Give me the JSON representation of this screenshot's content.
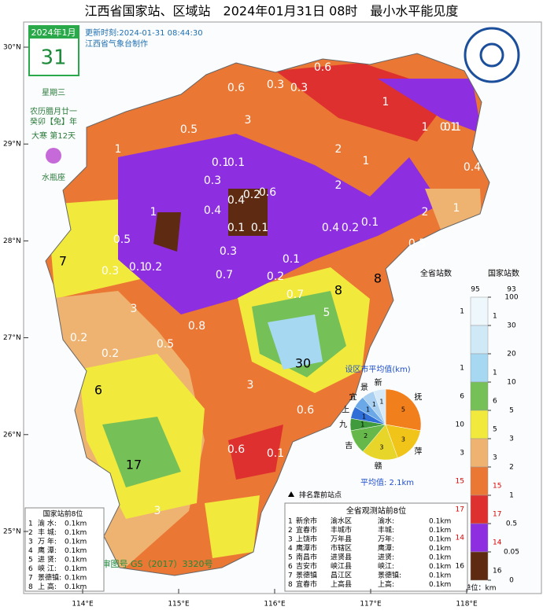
{
  "header": {
    "title": "江西省国家站、区域站　2024年01月31日 08时　最小水平能见度",
    "update": "更新时刻:2024-01-31 08:44:30",
    "maker": "江西省气象台制作"
  },
  "calendar": {
    "month": "2024年1月",
    "day": "31",
    "weekday": "星期三",
    "lunar": "农历腊月廿一",
    "year": "癸卯【兔】年",
    "term": "大寒 第12天",
    "zodiac": "水瓶座"
  },
  "axes": {
    "lat_ticks": [
      {
        "value": 30,
        "label": "30°N"
      },
      {
        "value": 29,
        "label": "29°N"
      },
      {
        "value": 28,
        "label": "28°N"
      },
      {
        "value": 27,
        "label": "27°N"
      },
      {
        "value": 26,
        "label": "26°N"
      },
      {
        "value": 25,
        "label": "25°N"
      }
    ],
    "lon_ticks": [
      {
        "value": 114,
        "label": "114°E"
      },
      {
        "value": 115,
        "label": "115°E"
      },
      {
        "value": 116,
        "label": "116°E"
      },
      {
        "value": 117,
        "label": "117°E"
      },
      {
        "value": 118,
        "label": "118°E"
      }
    ]
  },
  "map": {
    "values": [
      0.6,
      0.3,
      0.3,
      0.6,
      0.5,
      0.1,
      0.1,
      0.4,
      1,
      1,
      0.1,
      0.3,
      0.4,
      0.2,
      0.6,
      0.1,
      0.4,
      0.2,
      0.1,
      0.3,
      0.1,
      0.5,
      0.3,
      0.1,
      0.7,
      0.2,
      0.2,
      0.7,
      0.2,
      0.8,
      8,
      8,
      7,
      30,
      6,
      17,
      0.6,
      0.1,
      0.6,
      3,
      5,
      2,
      3,
      1,
      2,
      0.5,
      0.5,
      1,
      2,
      3,
      1,
      0.2,
      0.4,
      0.1,
      1,
      0.1,
      3
    ]
  },
  "legend": {
    "all_label": "全省站数",
    "nat_label": "国家站数",
    "all_total": 95,
    "nat_total": 93,
    "unit": "单位：km",
    "levels": [
      100,
      30,
      20,
      10,
      5,
      3,
      2,
      1,
      0.5,
      0.05,
      0
    ],
    "colors": [
      "#eef7fc",
      "#cfe9f7",
      "#a6d8f2",
      "#76c058",
      "#f1e93c",
      "#efb371",
      "#ea7734",
      "#de302e",
      "#8d2fe0",
      "#5e2a12"
    ],
    "all_counts": [
      1,
      null,
      1,
      6,
      10,
      3,
      15,
      17,
      14,
      16
    ],
    "nat_counts": [
      1,
      null,
      1,
      6,
      5,
      3,
      15,
      17,
      14,
      16
    ]
  },
  "pie": {
    "title": "设区市平均值(km)",
    "avg": "平均值: 2.1km",
    "names": [
      "抚",
      "萍",
      "赣",
      "吉",
      "九",
      "上",
      "宜",
      "景",
      "新"
    ],
    "values": [
      5,
      3,
      3,
      2,
      1,
      1,
      1,
      1,
      1
    ],
    "colors": [
      "#f07f1c",
      "#f0c419",
      "#e8d52a",
      "#66b84a",
      "#3f9b3c",
      "#2f6fd6",
      "#6aa8e8",
      "#a9d0f0",
      "#d6e9f8"
    ]
  },
  "ranking": {
    "marker_note": "排名靠前站点",
    "nat_title": "国家站前8位",
    "all_title": "全省观测站前8位",
    "nat_rows": [
      [
        "1",
        "渝 水:",
        "0.1km"
      ],
      [
        "2",
        "丰 城:",
        "0.1km"
      ],
      [
        "3",
        "万 年:",
        "0.1km"
      ],
      [
        "4",
        "鹰 潭:",
        "0.1km"
      ],
      [
        "5",
        "进 贤:",
        "0.1km"
      ],
      [
        "6",
        "峡 江:",
        "0.1km"
      ],
      [
        "7",
        "景德镇:",
        "0.1km"
      ],
      [
        "8",
        "上 高:",
        "0.1km"
      ]
    ],
    "all_rows": [
      [
        "1",
        "新余市",
        "渝水区",
        "渝水:",
        "0.1km"
      ],
      [
        "2",
        "宜春市",
        "丰城市",
        "丰城:",
        "0.1km"
      ],
      [
        "3",
        "上饶市",
        "万年县",
        "万年:",
        "0.1km"
      ],
      [
        "4",
        "鹰潭市",
        "市辖区",
        "鹰潭:",
        "0.1km"
      ],
      [
        "5",
        "南昌市",
        "进贤县",
        "进贤:",
        "0.1km"
      ],
      [
        "6",
        "吉安市",
        "峡江县",
        "峡江:",
        "0.1km"
      ],
      [
        "7",
        "景德镇",
        "昌江区",
        "景德镇:",
        "0.1km"
      ],
      [
        "8",
        "宜春市",
        "上高县",
        "上高:",
        "0.1km"
      ]
    ]
  },
  "footer": {
    "approval": "审图号  GS（2017）3320号"
  }
}
